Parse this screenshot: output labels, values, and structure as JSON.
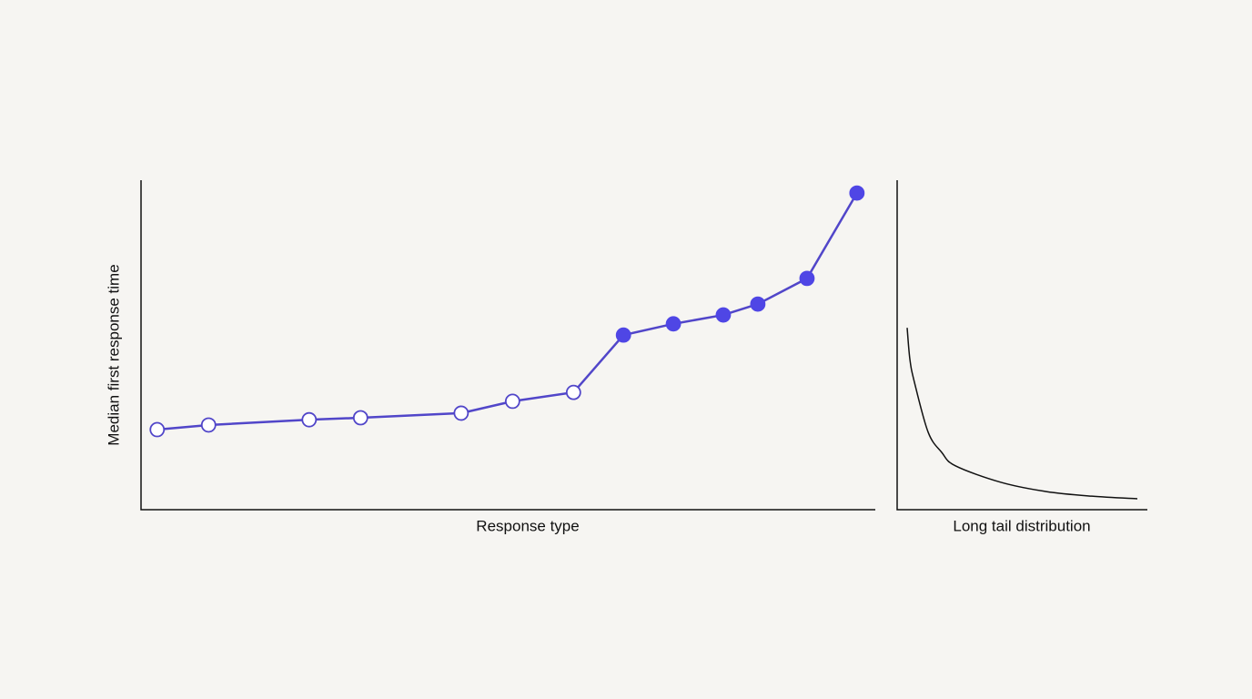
{
  "chart_data": [
    {
      "type": "line",
      "y_label": "Median first response time",
      "x_label": "Response type",
      "xlim": [
        0,
        100
      ],
      "ylim": [
        0,
        100
      ],
      "color": "#5146c9",
      "marker_color": "#4f46e5",
      "x": [
        2.2,
        9.2,
        22.9,
        29.9,
        43.6,
        50.6,
        58.9,
        65.7,
        72.5,
        79.3,
        84.0,
        90.7,
        97.5
      ],
      "values": [
        24.3,
        25.7,
        27.3,
        27.9,
        29.3,
        32.9,
        35.6,
        53.0,
        56.4,
        59.1,
        62.4,
        70.2,
        96.1
      ],
      "marker_styles": [
        "open",
        "open",
        "open",
        "open",
        "open",
        "open",
        "open",
        "filled",
        "filled",
        "filled",
        "filled",
        "filled",
        "filled"
      ]
    },
    {
      "type": "curve",
      "x_label": "Long tail distribution",
      "xlim": [
        0,
        100
      ],
      "ylim": [
        0,
        100
      ],
      "color": "#111111",
      "x": [
        4.0,
        5.1,
        6.9,
        12.4,
        17.8,
        23.3,
        41.5,
        59.6,
        77.8,
        96.0
      ],
      "values": [
        55.2,
        45.6,
        38.7,
        23.5,
        17.4,
        13.3,
        8.3,
        5.5,
        4.1,
        3.3
      ]
    }
  ]
}
